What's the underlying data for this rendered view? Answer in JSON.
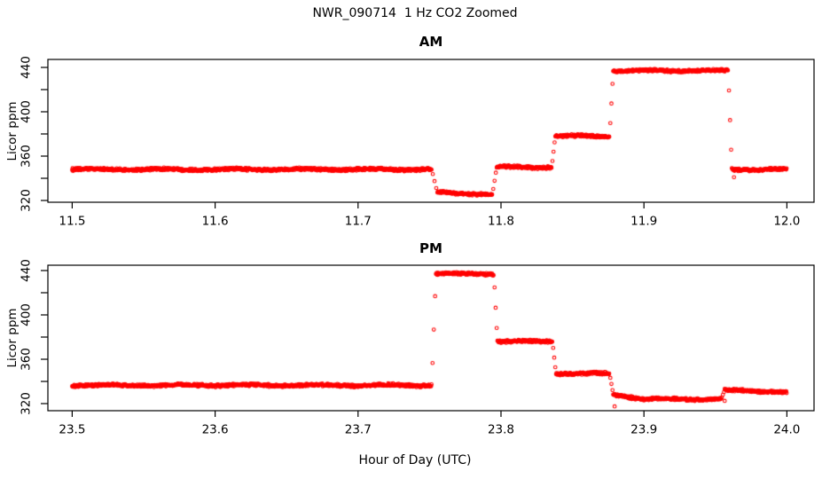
{
  "page": {
    "title": "NWR_090714  1 Hz CO2 Zoomed",
    "xlabel": "Hour of Day (UTC)",
    "background": "#ffffff",
    "point_color": "#ff0000",
    "axis_color": "#000000"
  },
  "chart_data": [
    {
      "type": "scatter",
      "title": "AM",
      "ylabel": "Licor ppm",
      "marker": "open-circle",
      "color": "#ff0000",
      "sample_rate_hz": 1,
      "xlim": [
        11.483,
        12.019
      ],
      "ylim": [
        318.4,
        447.2
      ],
      "xtick_values": [
        11.5,
        11.6,
        11.7,
        11.8,
        11.9,
        12.0
      ],
      "xtick_labels": [
        "11.5",
        "11.6",
        "11.7",
        "11.8",
        "11.9",
        "12.0"
      ],
      "ytick_minor_values": [
        320,
        340,
        360,
        380,
        400,
        420,
        440
      ],
      "ytick_labeled_values": [
        320,
        360,
        400,
        440
      ],
      "ytick_labels": [
        "320",
        "360",
        "400",
        "440"
      ],
      "grid": false,
      "segments": [
        {
          "x0": 11.5,
          "x1": 11.7515,
          "y": 348
        },
        {
          "x0": 11.7555,
          "x1": 11.794,
          "y": 327,
          "y_end": 325.5
        },
        {
          "x0": 11.797,
          "x1": 11.8355,
          "y": 350
        },
        {
          "x0": 11.838,
          "x1": 11.876,
          "y": 378
        },
        {
          "x0": 11.8785,
          "x1": 11.959,
          "y": 437
        },
        {
          "x0": 11.9615,
          "x1": 12.0,
          "y": 348
        }
      ],
      "stray_points": [
        [
          11.963,
          341
        ]
      ],
      "noise_ppm": 1.4
    },
    {
      "type": "scatter",
      "title": "PM",
      "ylabel": "Licor ppm",
      "marker": "open-circle",
      "color": "#ff0000",
      "sample_rate_hz": 1,
      "xlim": [
        23.483,
        24.019
      ],
      "ylim": [
        313.6,
        444.8
      ],
      "xtick_values": [
        23.5,
        23.6,
        23.7,
        23.8,
        23.9,
        24.0
      ],
      "xtick_labels": [
        "23.5",
        "23.6",
        "23.7",
        "23.8",
        "23.9",
        "24.0"
      ],
      "ytick_minor_values": [
        320,
        340,
        360,
        380,
        400,
        420,
        440
      ],
      "ytick_labeled_values": [
        320,
        360,
        400,
        440
      ],
      "ytick_labels": [
        "320",
        "360",
        "400",
        "440"
      ],
      "grid": false,
      "segments": [
        {
          "x0": 23.5,
          "x1": 23.7515,
          "y": 336.5
        },
        {
          "x0": 23.7545,
          "x1": 23.795,
          "y": 437
        },
        {
          "x0": 23.7975,
          "x1": 23.836,
          "y": 376
        },
        {
          "x0": 23.8385,
          "x1": 23.876,
          "y": 347
        },
        {
          "x0": 23.8785,
          "x1": 23.9,
          "y": 328.5,
          "y_end": 324
        },
        {
          "x0": 23.9,
          "x1": 23.954,
          "y": 324
        },
        {
          "x0": 23.9565,
          "x1": 24.0,
          "y": 332,
          "y_end": 330.5
        }
      ],
      "stray_points": [
        [
          23.8795,
          317.5
        ],
        [
          23.9565,
          322.5
        ]
      ],
      "noise_ppm": 1.4
    }
  ]
}
